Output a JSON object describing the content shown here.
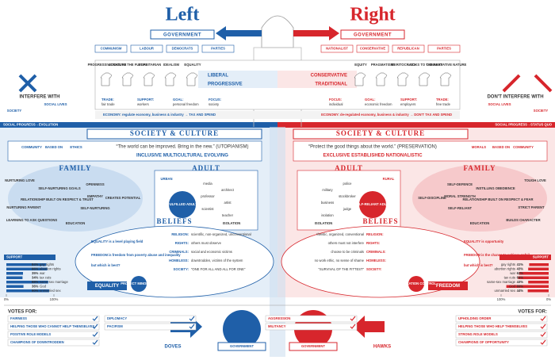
{
  "left": {
    "title": "Left",
    "government": "GOVERNMENT",
    "parties": [
      "COMMUNISM",
      "LABOUR",
      "DEMOCRATS",
      "PARTIES"
    ],
    "traits": [
      "PROGRESSIVE NATURE",
      "LOOKS TO THE FUTURE",
      "EGALITARIAN",
      "IDEALISM",
      "EQUALITY"
    ],
    "center": [
      "LIBERAL",
      "PROGRESSIVE"
    ],
    "economics": [
      [
        "TRADE:",
        "fair trade"
      ],
      [
        "SUPPORT:",
        "workers"
      ],
      [
        "GOAL:",
        "personal freedom"
      ],
      [
        "FOCUS:",
        "society"
      ]
    ],
    "economy": "ECONOMY: regulate economy, business & industry → TAX AND SPEND",
    "interfere": [
      "INTERFERE WITH",
      "SOCIETY",
      "SOCIAL LIVES"
    ],
    "progress": "SOCIAL PROGRESS→EVOLUTION",
    "society": "SOCIETY & CULTURE",
    "community": [
      "COMMUNITY",
      "BASED ON",
      "ETHICS"
    ],
    "quote": "“The world can be improved. Bring in the new.” (UTOPIANISM)",
    "values": "INCLUSIVE  MULTICULTURAL  EVOLVING",
    "family": {
      "title": "FAMILY",
      "items": [
        "NURTURING LOVE",
        "NURTURING PARENT",
        "RELATIONSHIP BUILT ON RESPECT & TRUST",
        "SELF-NURTURING GOALS",
        "OPENNESS",
        "EMPATHY",
        "SELF-NURTURING",
        "CREATES POTENTIAL",
        "EDUCATION",
        "LEARNING TO ASK QUESTIONS"
      ]
    },
    "adult": {
      "title": "ADULT",
      "setting": "URBAN",
      "type": "FULFILLED ADULT",
      "jobs": [
        "media",
        "architect",
        "professor",
        "artist",
        "scientist",
        "teacher"
      ],
      "isolation": "ISOLATION"
    },
    "beliefs": {
      "title": "BELIEFS",
      "equality": "EQUALITY is a level playing field",
      "freedom": "FREEDOM is freedom from poverty abuse and inequality",
      "question": "but which is best?",
      "badge": "EQUALITY",
      "protect": "PROTECT MINORITIES",
      "rows": [
        [
          "RELIGION:",
          "scientific, non-organized, unconventional"
        ],
        [
          "RIGHTS:",
          "others must observe"
        ],
        [
          "CRIMINALS:",
          "social and economic victims"
        ],
        [
          "HOMELESS:",
          "downtrodden, victims of the system"
        ],
        [
          "SOCIETY:",
          "“ONE FOR ALL AND ALL FOR ONE”"
        ]
      ]
    },
    "support": {
      "title": "SUPPORT",
      "categories": [
        "gay rights",
        "abortion rights",
        "war",
        "tax cuts",
        "same-sex marriage",
        "God",
        "unmarried sex"
      ],
      "values": [
        84,
        86,
        35,
        34,
        88,
        36,
        90
      ],
      "value_labels": [
        "84%",
        "86%",
        "35%",
        "34%",
        "88%",
        "36%",
        "90%"
      ],
      "xlim": [
        0,
        100
      ],
      "xticks": [
        {
          "value": 0,
          "label": "0%"
        },
        {
          "value": 100,
          "label": "100%"
        }
      ]
    },
    "votes": {
      "title": "VOTES FOR:",
      "items": [
        "FAIRNESS",
        "HELPING THOSE WHO CANNOT HELP THEMSELVES",
        "POSITIVE ROLE MODELS",
        "CHAMPIONS OF DOWNTRODDEN"
      ],
      "extra": [
        "DIPLOMACY",
        "PACIFISM"
      ],
      "bird": "DOVES",
      "government": "GOVERNMENT"
    }
  },
  "right": {
    "title": "Right",
    "government": "GOVERNMENT",
    "parties": [
      "PARTIES",
      "REPUBLICAN",
      "CONSERVATIVE",
      "NATIONALIST"
    ],
    "traits": [
      "EQUITY",
      "PRAGMATISM",
      "MERITOCRACY",
      "LOOKS TO THE PAST",
      "CONSERVATIVE NATURE"
    ],
    "center": [
      "CONSERVATIVE",
      "TRADITIONAL"
    ],
    "economics": [
      [
        "FOCUS:",
        "individual"
      ],
      [
        "GOAL:",
        "economic freedom"
      ],
      [
        "SUPPORT:",
        "employers"
      ],
      [
        "TRADE:",
        "free trade"
      ]
    ],
    "economy": "ECONOMY: de-regulated economy, business & industry → DON'T TAX AND SPEND",
    "interfere": [
      "DON'T INTERFERE WITH",
      "SOCIETY",
      "SOCIAL LIVES"
    ],
    "progress": "SOCIAL PROGRESS→STATUS QUO",
    "society": "SOCIETY & CULTURE",
    "community": [
      "COMMUNITY",
      "BASED ON",
      "MORALS"
    ],
    "quote": "“Protect the good things about the world.” (PRESERVATION)",
    "values": "EXCLUSIVE  ESTABLISHED  NATIONALISTIC",
    "family": {
      "title": "FAMILY",
      "items": [
        "TOUGH LOVE",
        "STRICT PARENT",
        "RELATIONSHIP BUILT ON RESPECT & FEAR",
        "INSTILLING OBEDIENCE",
        "SELF-DEFENCE",
        "MORAL STRENGTH",
        "SELF-RELIANT",
        "SELF-DISCIPLINE",
        "EDUCATION",
        "BUILDS CHARACTER"
      ]
    },
    "adult": {
      "title": "ADULT",
      "setting": "RURAL",
      "type": "SELF-RELIANT ADULT",
      "jobs": [
        "police",
        "military",
        "stockbroker",
        "business",
        "judge",
        "isolation"
      ],
      "isolation": "ISOLATION"
    },
    "beliefs": {
      "title": "BELIEFS",
      "equality": "EQUALITY is opportunity",
      "freedom": "FREEDOM is the chance to achieve or fail",
      "question": "but which is best?",
      "badge": "FREEDOM",
      "protect": "IMMIGRATION CONTROL",
      "rows": [
        [
          "RELIGION:",
          "theistic, organized, conventional"
        ],
        [
          "RIGHTS:",
          "others must not interfere"
        ],
        [
          "CRIMINALS:",
          "choose to be criminals"
        ],
        [
          "HOMELESS:",
          "no work ethic, no sense of shame"
        ],
        [
          "SOCIETY:",
          "“SURVIVAL OF THE FITTEST”"
        ]
      ]
    },
    "support": {
      "title": "SUPPORT",
      "categories": [
        "gay rights",
        "abortion rights",
        "war",
        "tax cuts",
        "same-sex marriage",
        "God",
        "unmarried sex"
      ],
      "values": [
        41,
        43,
        62,
        64,
        43,
        89,
        44
      ],
      "value_labels": [
        "41%",
        "43%",
        "62%",
        "64%",
        "43%",
        "89%",
        "44%"
      ],
      "xlim": [
        0,
        100
      ],
      "xticks": [
        {
          "value": 0,
          "label": "0%"
        },
        {
          "value": 100,
          "label": "100%"
        }
      ]
    },
    "votes": {
      "title": "VOTES FOR:",
      "items": [
        "AGGRESSION",
        "MILITANCY"
      ],
      "extra": [
        "UPHOLDING ORDER",
        "HELPING THOSE WHO HELP THEMSELVES",
        "STRONG ROLE MODELS",
        "CHAMPIONS OF OPPORTUNITY"
      ],
      "bird": "HAWKS",
      "government": "GOVERNMENT"
    }
  }
}
